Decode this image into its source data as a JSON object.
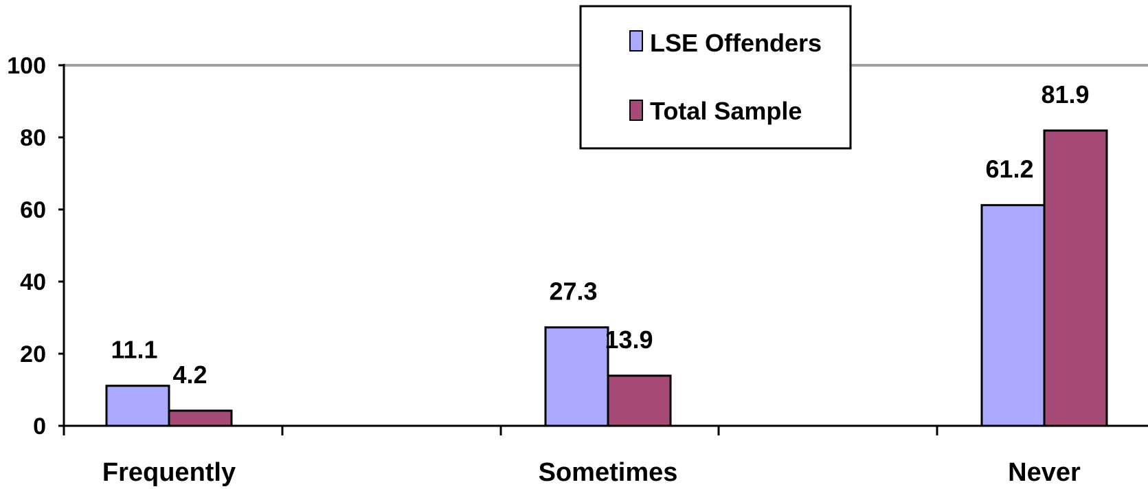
{
  "chart_data": {
    "type": "bar",
    "categories": [
      "Frequently",
      "Sometimes",
      "Never"
    ],
    "series": [
      {
        "name": "LSE Offenders",
        "values": [
          11.1,
          27.3,
          61.2
        ],
        "labels": [
          "11.1",
          "27.3",
          "61.2"
        ],
        "color": "#aaaaff"
      },
      {
        "name": "Total Sample",
        "values": [
          4.2,
          13.9,
          81.9
        ],
        "labels": [
          "4.2",
          "13.9",
          "81.9"
        ],
        "color": "#a64a78"
      }
    ],
    "ylim": [
      0,
      100
    ],
    "yticks": [
      "0",
      "20",
      "40",
      "60",
      "80",
      "100"
    ],
    "grid": "major gridline at 100 only",
    "legend": "top-center",
    "title": "",
    "xlabel": "",
    "ylabel": ""
  }
}
